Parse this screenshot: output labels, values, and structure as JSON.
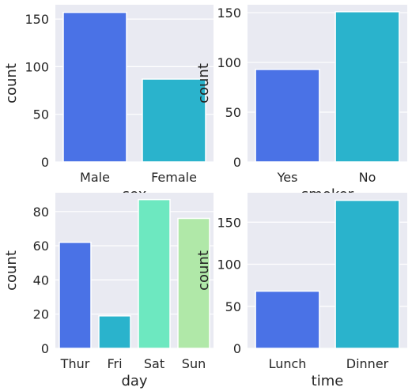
{
  "chart_data": [
    {
      "type": "bar",
      "categories": [
        "Male",
        "Female"
      ],
      "values": [
        157,
        87
      ],
      "xlabel": "sex",
      "ylabel": "count",
      "ylim": [
        0,
        165
      ],
      "yticks": [
        0,
        50,
        100,
        150
      ],
      "colors": [
        "#4a72e6",
        "#2ab3cc"
      ],
      "grid": true
    },
    {
      "type": "bar",
      "categories": [
        "Yes",
        "No"
      ],
      "values": [
        93,
        151
      ],
      "xlabel": "smoker",
      "ylabel": "count",
      "ylim": [
        0,
        158
      ],
      "yticks": [
        0,
        50,
        100,
        150
      ],
      "colors": [
        "#4a72e6",
        "#2ab3cc"
      ],
      "grid": true
    },
    {
      "type": "bar",
      "categories": [
        "Thur",
        "Fri",
        "Sat",
        "Sun"
      ],
      "values": [
        62,
        19,
        87,
        76
      ],
      "xlabel": "day",
      "ylabel": "count",
      "ylim": [
        0,
        91
      ],
      "yticks": [
        0,
        20,
        40,
        60,
        80
      ],
      "colors": [
        "#4a72e6",
        "#2ab3cc",
        "#6de8c0",
        "#b0e8a8"
      ],
      "grid": true
    },
    {
      "type": "bar",
      "categories": [
        "Lunch",
        "Dinner"
      ],
      "values": [
        68,
        176
      ],
      "xlabel": "time",
      "ylabel": "count",
      "ylim": [
        0,
        185
      ],
      "yticks": [
        0,
        50,
        100,
        150
      ],
      "colors": [
        "#4a72e6",
        "#2ab3cc"
      ],
      "grid": true
    }
  ]
}
